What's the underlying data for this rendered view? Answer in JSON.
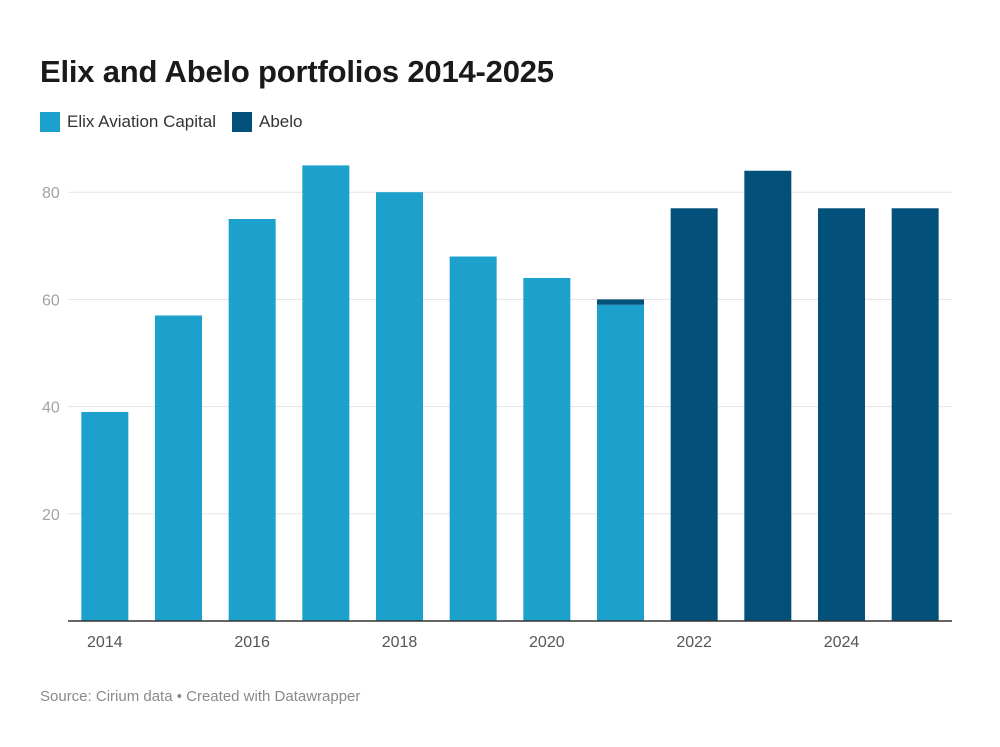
{
  "title": "Elix and Abelo portfolios 2014-2025",
  "footer": "Source: Cirium data • Created with Datawrapper",
  "colors": {
    "elix": "#1ba1cc",
    "abelo": "#03507a",
    "grid": "#e3e3e3",
    "axis": "#333333"
  },
  "chart_data": {
    "type": "bar",
    "stacked": true,
    "title": "Elix and Abelo portfolios 2014-2025",
    "categories": [
      "2014",
      "2015",
      "2016",
      "2017",
      "2018",
      "2019",
      "2020",
      "2021",
      "2022",
      "2023",
      "2024",
      "2025"
    ],
    "x_tick_labels": [
      "2014",
      "2016",
      "2018",
      "2020",
      "2022",
      "2024"
    ],
    "series": [
      {
        "name": "Elix Aviation Capital",
        "values": [
          39,
          57,
          75,
          85,
          80,
          68,
          64,
          59,
          0,
          0,
          0,
          0
        ]
      },
      {
        "name": "Abelo",
        "values": [
          0,
          0,
          0,
          0,
          0,
          0,
          0,
          1,
          77,
          84,
          77,
          77
        ]
      }
    ],
    "ylim": [
      0,
      88
    ],
    "y_ticks": [
      20,
      40,
      60,
      80
    ],
    "grid": true,
    "legend": "top-left"
  }
}
